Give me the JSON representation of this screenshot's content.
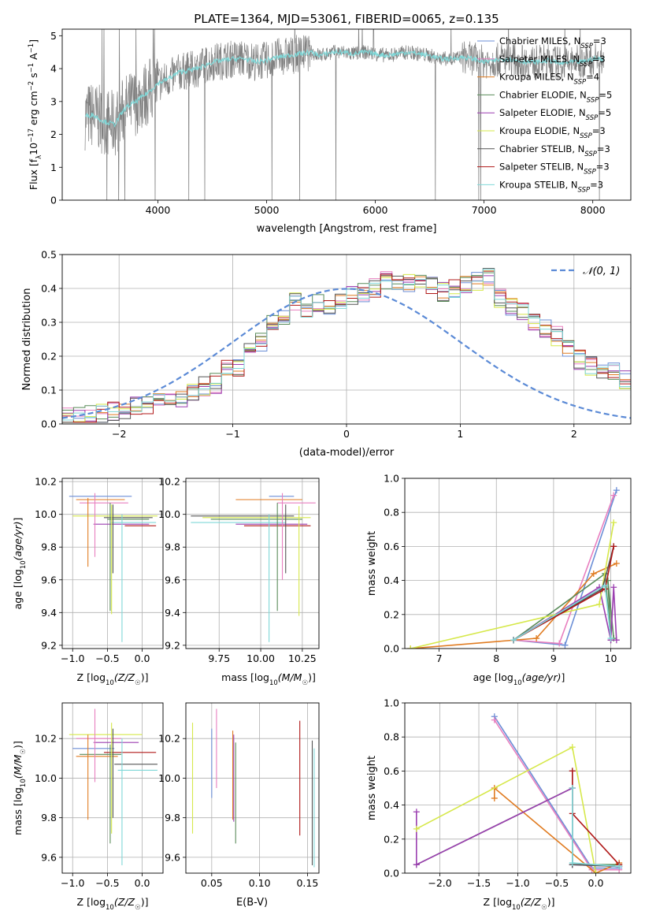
{
  "chart_data": [
    {
      "type": "line",
      "title": "PLATE=1364, MJD=53061, FIBERID=0065, z=0.135",
      "xlabel": "wavelength [Angstrom, rest frame]",
      "ylabel": "Flux [f_λ 10^-17 erg cm^-2 s^-1 A^-1]",
      "xlim": [
        3120,
        8350
      ],
      "ylim": [
        0,
        5.2
      ],
      "xticks": [
        4000,
        5000,
        6000,
        7000,
        8000
      ],
      "yticks": [
        0,
        1,
        2,
        3,
        4,
        5
      ],
      "legend": "upper-right",
      "spectrum_color": "#808080",
      "model_color": "#7fd8d8",
      "spectrum": {
        "x": [
          3330,
          3400,
          3500,
          3600,
          3700,
          3800,
          3900,
          4000,
          4100,
          4200,
          4300,
          4400,
          4500,
          4600,
          4700,
          4800,
          4900,
          5000,
          5100,
          5200,
          5300,
          5400,
          5500,
          5600,
          5700,
          5800,
          5900,
          6000,
          6100,
          6200,
          6300,
          6400,
          6500,
          6600,
          6700,
          6800,
          6900,
          7000,
          7100,
          7200,
          7300,
          7400,
          7500,
          7600,
          7700,
          7800,
          7900,
          8000,
          8100
        ],
        "y": [
          2.55,
          2.6,
          2.4,
          2.3,
          2.8,
          3.0,
          3.25,
          3.55,
          3.7,
          3.9,
          3.95,
          4.05,
          4.2,
          4.25,
          4.3,
          4.3,
          4.2,
          4.25,
          4.35,
          4.4,
          4.45,
          4.5,
          4.4,
          4.5,
          4.5,
          4.45,
          4.5,
          4.45,
          4.4,
          4.45,
          4.5,
          4.45,
          4.4,
          4.3,
          4.3,
          4.35,
          4.3,
          4.2,
          4.25,
          4.3,
          4.25,
          4.2,
          4.2,
          4.25,
          4.15,
          4.2,
          4.2,
          4.3,
          4.3
        ]
      },
      "series": [
        {
          "name": "Chabrier MILES, N_SSP=3",
          "color": "#6b8ed6"
        },
        {
          "name": "Salpeter MILES, N_SSP=3",
          "color": "#e87fbf"
        },
        {
          "name": "Kroupa MILES, N_SSP=4",
          "color": "#e07b20"
        },
        {
          "name": "Chabrier ELODIE, N_SSP=5",
          "color": "#5a8c5a"
        },
        {
          "name": "Salpeter ELODIE, N_SSP=5",
          "color": "#9b3fb0"
        },
        {
          "name": "Kroupa ELODIE, N_SSP=3",
          "color": "#d6e84a"
        },
        {
          "name": "Chabrier STELIB, N_SSP=3",
          "color": "#555555"
        },
        {
          "name": "Salpeter STELIB, N_SSP=3",
          "color": "#b01818"
        },
        {
          "name": "Kroupa STELIB, N_SSP=3",
          "color": "#7fd8d8"
        }
      ]
    },
    {
      "type": "bar",
      "xlabel": "(data-model)/error",
      "ylabel": "Normed distribution",
      "xlim": [
        -2.5,
        2.5
      ],
      "ylim": [
        0,
        0.5
      ],
      "xticks": [
        -2,
        -1,
        0,
        1,
        2
      ],
      "yticks": [
        0.0,
        0.1,
        0.2,
        0.3,
        0.4,
        0.5
      ],
      "legend": "upper-right",
      "gaussian_label": "𝒩(0, 1)",
      "gaussian_color": "#5b8ad6",
      "bin_width": 0.1,
      "bin_start": -2.5,
      "base_values": [
        0.02,
        0.02,
        0.03,
        0.03,
        0.04,
        0.04,
        0.05,
        0.05,
        0.06,
        0.07,
        0.08,
        0.1,
        0.11,
        0.12,
        0.16,
        0.17,
        0.22,
        0.24,
        0.3,
        0.32,
        0.36,
        0.34,
        0.36,
        0.34,
        0.36,
        0.38,
        0.39,
        0.4,
        0.42,
        0.41,
        0.42,
        0.43,
        0.41,
        0.39,
        0.4,
        0.41,
        0.42,
        0.43,
        0.37,
        0.35,
        0.33,
        0.3,
        0.28,
        0.26,
        0.22,
        0.19,
        0.17,
        0.16,
        0.15,
        0.13,
        0.1,
        0.09,
        0.08,
        0.07,
        0.06,
        0.05,
        0.05,
        0.04,
        0.03,
        0.03
      ]
    },
    {
      "type": "scatter",
      "panel": "Z-age",
      "xlabel": "Z [log10(Z/Z☉)]",
      "ylabel": "age [log10(age/yr)]",
      "xlim": [
        -1.15,
        0.3
      ],
      "ylim": [
        9.18,
        10.22
      ],
      "xticks": [
        -1.0,
        -0.5,
        0.0
      ],
      "yticks": [
        9.2,
        9.4,
        9.6,
        9.8,
        10.0,
        10.2
      ],
      "hlines": [
        {
          "y": 10.11,
          "x0": -1.05,
          "x1": -0.15,
          "c": 0
        },
        {
          "y": 10.09,
          "x0": -0.95,
          "x1": -0.25,
          "c": 2
        },
        {
          "y": 10.07,
          "x0": -0.9,
          "x1": -0.2,
          "c": 1
        },
        {
          "y": 9.99,
          "x0": -1.0,
          "x1": 0.22,
          "c": 5
        },
        {
          "y": 9.98,
          "x0": -0.55,
          "x1": 0.15,
          "c": 6
        },
        {
          "y": 9.97,
          "x0": -0.5,
          "x1": 0.1,
          "c": 3
        },
        {
          "y": 9.95,
          "x0": -0.45,
          "x1": 0.2,
          "c": 8
        },
        {
          "y": 9.94,
          "x0": -0.7,
          "x1": 0.1,
          "c": 4
        },
        {
          "y": 9.93,
          "x0": -0.25,
          "x1": 0.2,
          "c": 7
        }
      ],
      "vlines": [
        {
          "x": -0.78,
          "y0": 9.68,
          "y1": 10.1,
          "c": 2
        },
        {
          "x": -0.68,
          "y0": 9.74,
          "y1": 10.13,
          "c": 1
        },
        {
          "x": -0.46,
          "y0": 9.41,
          "y1": 10.07,
          "c": 3
        },
        {
          "x": -0.44,
          "y0": 9.39,
          "y1": 10.06,
          "c": 5
        },
        {
          "x": -0.42,
          "y0": 9.64,
          "y1": 10.06,
          "c": 6
        },
        {
          "x": -0.29,
          "y0": 9.22,
          "y1": 10.0,
          "c": 8
        }
      ]
    },
    {
      "type": "scatter",
      "panel": "mass-age",
      "xlabel": "mass [log10(M/M☉)]",
      "xlim": [
        9.55,
        10.35
      ],
      "ylim": [
        9.18,
        10.22
      ],
      "xticks": [
        9.75,
        10.0,
        10.25
      ],
      "yticks": [
        9.2,
        9.4,
        9.6,
        9.8,
        10.0,
        10.2
      ],
      "hlines": [
        {
          "y": 10.11,
          "x0": 10.05,
          "x1": 10.2,
          "c": 0
        },
        {
          "y": 10.09,
          "x0": 9.85,
          "x1": 10.25,
          "c": 2
        },
        {
          "y": 10.07,
          "x0": 10.1,
          "x1": 10.33,
          "c": 1
        },
        {
          "y": 9.99,
          "x0": 9.58,
          "x1": 10.2,
          "c": 6
        },
        {
          "y": 9.98,
          "x0": 9.65,
          "x1": 10.3,
          "c": 5
        },
        {
          "y": 9.97,
          "x0": 9.7,
          "x1": 10.25,
          "c": 3
        },
        {
          "y": 9.95,
          "x0": 9.58,
          "x1": 10.15,
          "c": 8
        },
        {
          "y": 9.94,
          "x0": 9.85,
          "x1": 10.28,
          "c": 4
        },
        {
          "y": 9.93,
          "x0": 9.9,
          "x1": 10.3,
          "c": 7
        }
      ],
      "vlines": [
        {
          "x": 10.13,
          "y0": 9.6,
          "y1": 10.13,
          "c": 1
        },
        {
          "x": 10.1,
          "y0": 9.41,
          "y1": 10.07,
          "c": 3
        },
        {
          "x": 10.15,
          "y0": 9.64,
          "y1": 10.06,
          "c": 6
        },
        {
          "x": 10.23,
          "y0": 9.38,
          "y1": 10.05,
          "c": 5
        },
        {
          "x": 10.05,
          "y0": 9.22,
          "y1": 10.0,
          "c": 8
        }
      ]
    },
    {
      "type": "line",
      "panel": "age-massweight",
      "xlabel": "age [log10(age/yr)]",
      "ylabel": "mass weight",
      "xlim": [
        6.4,
        10.35
      ],
      "ylim": [
        0,
        1
      ],
      "xticks": [
        7,
        8,
        9,
        10
      ],
      "yticks": [
        0.0,
        0.2,
        0.4,
        0.6,
        0.8,
        1.0
      ],
      "lines": [
        {
          "c": 0,
          "x": [
            8.3,
            9.2,
            10.1
          ],
          "y": [
            0.05,
            0.02,
            0.93
          ]
        },
        {
          "c": 1,
          "x": [
            8.3,
            9.1,
            10.05
          ],
          "y": [
            0.05,
            0.03,
            0.9
          ]
        },
        {
          "c": 2,
          "x": [
            6.5,
            8.7,
            9.7,
            10.1
          ],
          "y": [
            0.0,
            0.06,
            0.44,
            0.5
          ]
        },
        {
          "c": 3,
          "x": [
            8.3,
            9.9,
            10.0,
            9.95,
            10.05
          ],
          "y": [
            0.05,
            0.44,
            0.05,
            0.4,
            0.06
          ]
        },
        {
          "c": 4,
          "x": [
            8.3,
            9.8,
            10.0,
            10.05,
            10.1
          ],
          "y": [
            0.05,
            0.36,
            0.05,
            0.36,
            0.05
          ]
        },
        {
          "c": 5,
          "x": [
            6.5,
            9.8,
            10.05
          ],
          "y": [
            0.0,
            0.26,
            0.74
          ]
        },
        {
          "c": 6,
          "x": [
            8.3,
            9.85,
            10.05
          ],
          "y": [
            0.05,
            0.35,
            0.6
          ]
        },
        {
          "c": 7,
          "x": [
            8.3,
            9.9,
            10.05
          ],
          "y": [
            0.05,
            0.35,
            0.6
          ]
        },
        {
          "c": 8,
          "x": [
            8.3,
            9.9,
            10.0
          ],
          "y": [
            0.05,
            0.37,
            0.06
          ]
        }
      ]
    },
    {
      "type": "scatter",
      "panel": "Z-mass",
      "xlabel": "Z [log10(Z/Z☉)]",
      "ylabel": "mass [log10(M/M☉)]",
      "xlim": [
        -1.15,
        0.3
      ],
      "ylim": [
        9.52,
        10.38
      ],
      "xticks": [
        -1.0,
        -0.5,
        0.0
      ],
      "yticks": [
        9.6,
        9.8,
        10.0,
        10.2
      ],
      "hlines": [
        {
          "y": 10.22,
          "x0": -1.05,
          "x1": 0.0,
          "c": 5
        },
        {
          "y": 10.2,
          "x0": -0.95,
          "x1": -0.3,
          "c": 1
        },
        {
          "y": 10.18,
          "x0": -0.7,
          "x1": -0.05,
          "c": 4
        },
        {
          "y": 10.15,
          "x0": -1.0,
          "x1": -0.4,
          "c": 0
        },
        {
          "y": 10.13,
          "x0": -0.55,
          "x1": 0.2,
          "c": 7
        },
        {
          "y": 10.12,
          "x0": -0.9,
          "x1": -0.3,
          "c": 3
        },
        {
          "y": 10.11,
          "x0": -0.95,
          "x1": -0.35,
          "c": 2
        },
        {
          "y": 10.07,
          "x0": -0.4,
          "x1": 0.22,
          "c": 6
        },
        {
          "y": 10.04,
          "x0": -0.35,
          "x1": 0.22,
          "c": 8
        }
      ],
      "vlines": [
        {
          "x": -0.78,
          "y0": 9.79,
          "y1": 10.22,
          "c": 2
        },
        {
          "x": -0.68,
          "y0": 9.98,
          "y1": 10.35,
          "c": 1
        },
        {
          "x": -0.46,
          "y0": 9.67,
          "y1": 10.17,
          "c": 3
        },
        {
          "x": -0.44,
          "y0": 9.72,
          "y1": 10.28,
          "c": 5
        },
        {
          "x": -0.42,
          "y0": 9.8,
          "y1": 10.25,
          "c": 6
        },
        {
          "x": -0.29,
          "y0": 9.56,
          "y1": 10.2,
          "c": 8
        }
      ]
    },
    {
      "type": "scatter",
      "panel": "EBV-mass",
      "xlabel": "E(B-V)",
      "xlim": [
        0.023,
        0.162
      ],
      "ylim": [
        9.52,
        10.38
      ],
      "xticks": [
        0.05,
        0.1,
        0.15
      ],
      "yticks": [
        9.6,
        9.8,
        10.0,
        10.2
      ],
      "vlines": [
        {
          "x": 0.03,
          "y0": 9.72,
          "y1": 10.28,
          "c": 5
        },
        {
          "x": 0.05,
          "y0": 9.9,
          "y1": 10.25,
          "c": 0
        },
        {
          "x": 0.055,
          "y0": 9.95,
          "y1": 10.35,
          "c": 1
        },
        {
          "x": 0.072,
          "y0": 9.79,
          "y1": 10.24,
          "c": 2
        },
        {
          "x": 0.073,
          "y0": 9.78,
          "y1": 10.22,
          "c": 4
        },
        {
          "x": 0.075,
          "y0": 9.67,
          "y1": 10.18,
          "c": 3
        },
        {
          "x": 0.142,
          "y0": 9.71,
          "y1": 10.29,
          "c": 7
        },
        {
          "x": 0.155,
          "y0": 9.56,
          "y1": 10.19,
          "c": 6
        },
        {
          "x": 0.157,
          "y0": 9.55,
          "y1": 10.15,
          "c": 8
        }
      ]
    },
    {
      "type": "line",
      "panel": "Z-massweight",
      "xlabel": "Z [log10(Z/Z☉)]",
      "ylabel": "mass weight",
      "xlim": [
        -2.45,
        0.45
      ],
      "ylim": [
        0,
        1
      ],
      "xticks": [
        -2.0,
        -1.5,
        -1.0,
        -0.5,
        0.0
      ],
      "yticks": [
        0.0,
        0.2,
        0.4,
        0.6,
        0.8,
        1.0
      ],
      "lines": [
        {
          "c": 0,
          "x": [
            -1.3,
            -0.05,
            0.3
          ],
          "y": [
            0.92,
            0.03,
            0.03
          ]
        },
        {
          "c": 1,
          "x": [
            -1.3,
            -0.05,
            0.3
          ],
          "y": [
            0.9,
            0.02,
            0.02
          ]
        },
        {
          "c": 2,
          "x": [
            -1.3,
            -1.3,
            0.0,
            0.3
          ],
          "y": [
            0.44,
            0.5,
            0.0,
            0.06
          ]
        },
        {
          "c": 3,
          "x": [
            -2.3,
            -0.3,
            -0.3,
            0.3
          ],
          "y": [
            0.05,
            0.5,
            0.05,
            0.05
          ]
        },
        {
          "c": 4,
          "x": [
            -2.3,
            -2.3,
            -0.3,
            -0.3,
            0.3
          ],
          "y": [
            0.36,
            0.05,
            0.5,
            0.05,
            0.04
          ]
        },
        {
          "c": 5,
          "x": [
            -2.3,
            -0.3,
            0.0
          ],
          "y": [
            0.26,
            0.74,
            0.0
          ]
        },
        {
          "c": 6,
          "x": [
            -0.3,
            -0.3,
            0.3
          ],
          "y": [
            0.6,
            0.05,
            0.04
          ]
        },
        {
          "c": 7,
          "x": [
            -0.3,
            -0.3,
            0.3
          ],
          "y": [
            0.6,
            0.35,
            0.05
          ]
        },
        {
          "c": 8,
          "x": [
            -0.3,
            -0.3,
            0.3
          ],
          "y": [
            0.5,
            0.06,
            0.04
          ]
        }
      ]
    }
  ]
}
